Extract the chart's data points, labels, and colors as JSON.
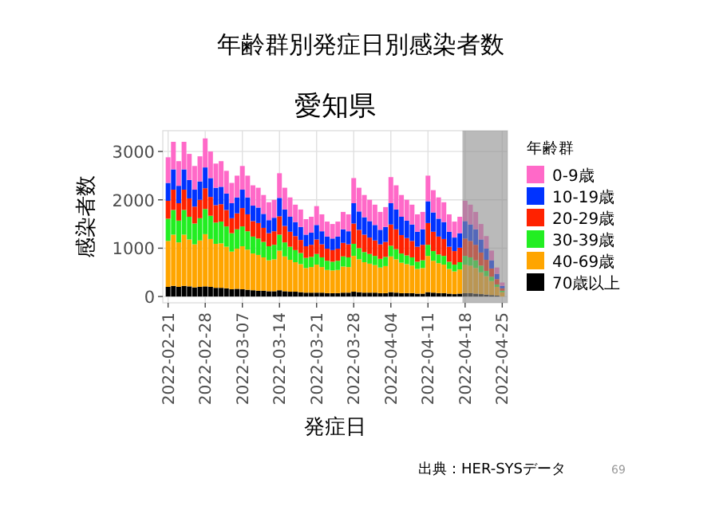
{
  "chart_data": {
    "type": "bar",
    "stacked": true,
    "title": "年齢群別発症日別感染者数",
    "subtitle": "愛知県",
    "xlabel": "発症日",
    "ylabel": "感染者数",
    "legend_title": "年齢群",
    "annotations": [
      "出典：HER-SYSデータ",
      "69"
    ],
    "x": [
      "2022-02-21",
      "2022-02-22",
      "2022-02-23",
      "2022-02-24",
      "2022-02-25",
      "2022-02-26",
      "2022-02-27",
      "2022-02-28",
      "2022-03-01",
      "2022-03-02",
      "2022-03-03",
      "2022-03-04",
      "2022-03-05",
      "2022-03-06",
      "2022-03-07",
      "2022-03-08",
      "2022-03-09",
      "2022-03-10",
      "2022-03-11",
      "2022-03-12",
      "2022-03-13",
      "2022-03-14",
      "2022-03-15",
      "2022-03-16",
      "2022-03-17",
      "2022-03-18",
      "2022-03-19",
      "2022-03-20",
      "2022-03-21",
      "2022-03-22",
      "2022-03-23",
      "2022-03-24",
      "2022-03-25",
      "2022-03-26",
      "2022-03-27",
      "2022-03-28",
      "2022-03-29",
      "2022-03-30",
      "2022-03-31",
      "2022-04-01",
      "2022-04-02",
      "2022-04-03",
      "2022-04-04",
      "2022-04-05",
      "2022-04-06",
      "2022-04-07",
      "2022-04-08",
      "2022-04-09",
      "2022-04-10",
      "2022-04-11",
      "2022-04-12",
      "2022-04-13",
      "2022-04-14",
      "2022-04-15",
      "2022-04-16",
      "2022-04-17",
      "2022-04-18",
      "2022-04-19",
      "2022-04-20",
      "2022-04-21",
      "2022-04-22",
      "2022-04-23",
      "2022-04-24",
      "2022-04-25"
    ],
    "series": [
      {
        "name": "70歳以上",
        "color": "#000000",
        "values": [
          200,
          220,
          200,
          220,
          210,
          190,
          200,
          210,
          200,
          180,
          180,
          170,
          150,
          160,
          150,
          140,
          130,
          120,
          120,
          110,
          110,
          130,
          110,
          100,
          100,
          90,
          80,
          80,
          80,
          80,
          70,
          70,
          70,
          80,
          80,
          100,
          90,
          80,
          80,
          80,
          70,
          70,
          90,
          80,
          70,
          70,
          70,
          60,
          60,
          90,
          80,
          70,
          70,
          60,
          50,
          60,
          70,
          70,
          60,
          50,
          40,
          30,
          20,
          null
        ]
      },
      {
        "name": "40-69歳",
        "color": "#ffa500",
        "values": [
          950,
          1060,
          920,
          1060,
          970,
          890,
          960,
          1080,
          990,
          910,
          920,
          860,
          780,
          830,
          890,
          830,
          760,
          740,
          690,
          640,
          660,
          820,
          720,
          660,
          610,
          580,
          510,
          530,
          580,
          530,
          480,
          470,
          480,
          540,
          530,
          740,
          680,
          630,
          600,
          570,
          530,
          560,
          740,
          690,
          630,
          600,
          570,
          510,
          530,
          750,
          660,
          620,
          590,
          510,
          470,
          500,
          590,
          570,
          530,
          450,
          380,
          290,
          180,
          90
        ]
      },
      {
        "name": "30-39歳",
        "color": "#22ee22",
        "values": [
          460,
          510,
          450,
          510,
          470,
          430,
          460,
          520,
          480,
          440,
          450,
          420,
          380,
          400,
          410,
          380,
          350,
          340,
          320,
          290,
          300,
          330,
          290,
          270,
          250,
          230,
          210,
          210,
          220,
          200,
          190,
          180,
          190,
          210,
          200,
          250,
          230,
          210,
          200,
          190,
          180,
          190,
          220,
          210,
          190,
          180,
          170,
          150,
          160,
          230,
          200,
          180,
          180,
          150,
          140,
          150,
          180,
          170,
          160,
          140,
          110,
          90,
          50,
          30
        ]
      },
      {
        "name": "20-29歳",
        "color": "#ff2200",
        "values": [
          370,
          420,
          360,
          420,
          380,
          350,
          380,
          430,
          390,
          360,
          360,
          340,
          310,
          330,
          380,
          350,
          320,
          320,
          290,
          270,
          280,
          380,
          340,
          310,
          290,
          270,
          240,
          250,
          300,
          270,
          250,
          240,
          250,
          280,
          270,
          420,
          380,
          360,
          340,
          320,
          300,
          310,
          440,
          410,
          380,
          360,
          340,
          310,
          320,
          450,
          400,
          370,
          350,
          310,
          280,
          300,
          360,
          340,
          320,
          270,
          230,
          170,
          110,
          50
        ]
      },
      {
        "name": "10-19歳",
        "color": "#0033ff",
        "values": [
          370,
          420,
          360,
          420,
          380,
          350,
          380,
          430,
          390,
          360,
          360,
          340,
          310,
          330,
          380,
          350,
          320,
          320,
          290,
          270,
          280,
          380,
          340,
          310,
          290,
          270,
          240,
          250,
          300,
          270,
          250,
          240,
          250,
          280,
          270,
          420,
          380,
          360,
          340,
          320,
          300,
          310,
          440,
          410,
          380,
          360,
          340,
          310,
          320,
          450,
          400,
          370,
          350,
          310,
          280,
          300,
          360,
          340,
          320,
          270,
          230,
          170,
          110,
          50
        ]
      },
      {
        "name": "0-9歳",
        "color": "#ff69c8",
        "values": [
          530,
          570,
          510,
          570,
          540,
          490,
          520,
          600,
          550,
          500,
          530,
          470,
          420,
          450,
          490,
          450,
          420,
          410,
          390,
          370,
          370,
          510,
          450,
          400,
          360,
          360,
          320,
          330,
          390,
          350,
          310,
          300,
          310,
          360,
          350,
          520,
          490,
          460,
          440,
          420,
          370,
          410,
          540,
          500,
          450,
          430,
          410,
          360,
          360,
          530,
          460,
          440,
          410,
          360,
          330,
          340,
          420,
          410,
          360,
          320,
          260,
          200,
          130,
          70
        ]
      }
    ],
    "xlim": [
      "2022-02-20",
      "2022-04-26"
    ],
    "xticks": [
      "2022-02-21",
      "2022-02-28",
      "2022-03-07",
      "2022-03-14",
      "2022-03-21",
      "2022-03-28",
      "2022-04-04",
      "2022-04-11",
      "2022-04-18",
      "2022-04-25"
    ],
    "ylim": [
      -130,
      3430
    ],
    "yticks": [
      0,
      1000,
      2000,
      3000
    ],
    "bands": [
      {
        "axis": "x",
        "from": "2022-04-17T12:00",
        "to": "2022-04-26",
        "color": "#8c8c8c"
      }
    ],
    "grid": true,
    "legend": "right"
  }
}
